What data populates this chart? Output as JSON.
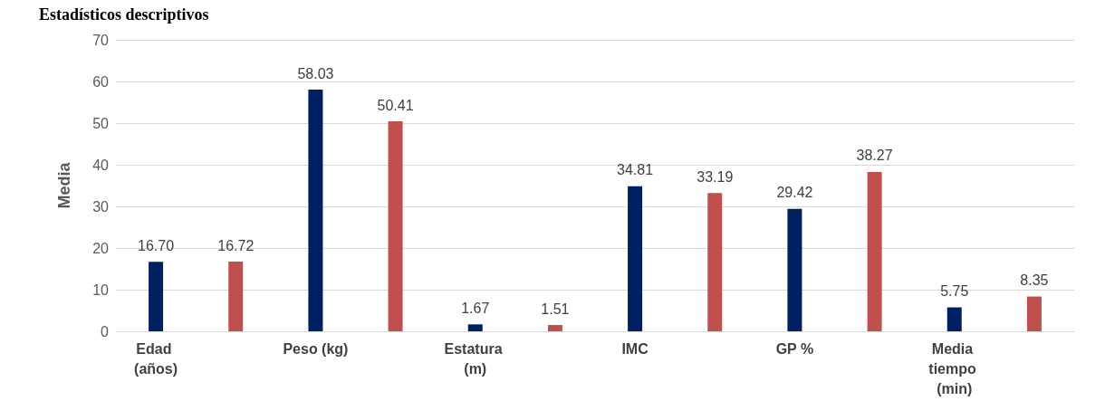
{
  "chart_data": {
    "type": "bar",
    "title": "Estadísticos descriptivos",
    "ylabel": "Media",
    "categories": [
      "Edad (años)",
      null,
      "Peso (kg)",
      null,
      "Estatura (m)",
      null,
      "IMC",
      null,
      "GP %",
      null,
      "Media tiempo (min)",
      null
    ],
    "values": [
      16.7,
      16.72,
      58.03,
      50.41,
      1.67,
      1.51,
      34.81,
      33.19,
      29.42,
      38.27,
      5.75,
      8.35
    ],
    "value_labels": [
      "16.70",
      "16.72",
      "58.03",
      "50.41",
      "1.67",
      "1.51",
      "34.81",
      "33.19",
      "29.42",
      "38.27",
      "5.75",
      "8.35"
    ],
    "colors": [
      "#002060",
      "#c0504d",
      "#002060",
      "#c0504d",
      "#002060",
      "#c0504d",
      "#002060",
      "#c0504d",
      "#002060",
      "#c0504d",
      "#002060",
      "#c0504d"
    ],
    "ylim": [
      0,
      70
    ],
    "yticks": [
      0,
      10,
      20,
      30,
      40,
      50,
      60,
      70
    ],
    "grid": "y"
  }
}
